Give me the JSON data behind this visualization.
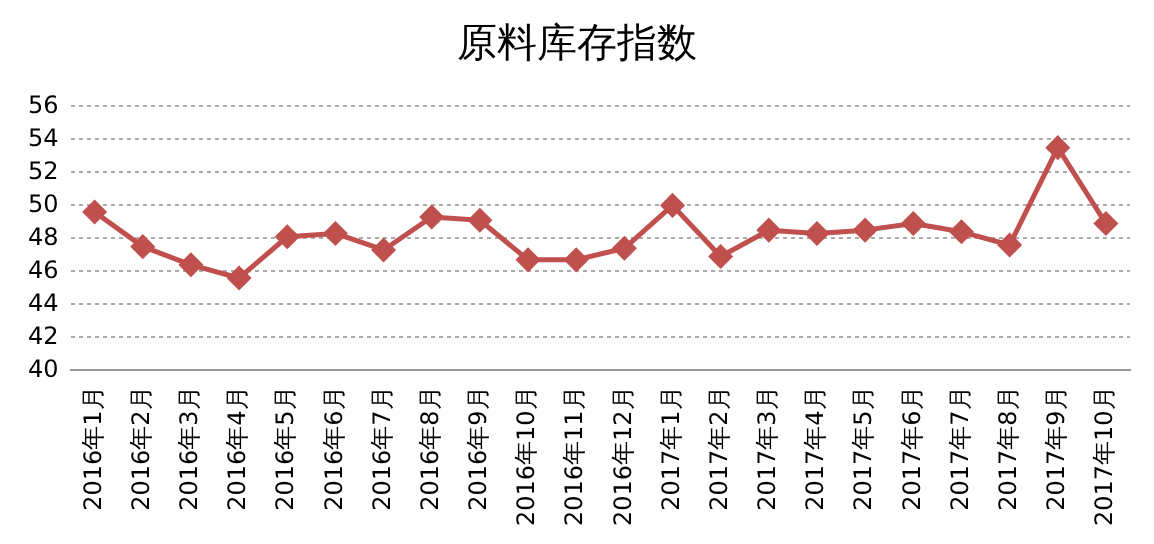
{
  "chart_data": {
    "type": "line",
    "title": "原料库存指数",
    "categories": [
      "2016年1月",
      "2016年2月",
      "2016年3月",
      "2016年4月",
      "2016年5月",
      "2016年6月",
      "2016年7月",
      "2016年8月",
      "2016年9月",
      "2016年10月",
      "2016年11月",
      "2016年12月",
      "2017年1月",
      "2017年2月",
      "2017年3月",
      "2017年4月",
      "2017年5月",
      "2017年6月",
      "2017年7月",
      "2017年8月",
      "2017年9月",
      "2017年10月"
    ],
    "series": [
      {
        "color": "#c0504d",
        "values": [
          49.6,
          47.5,
          46.4,
          45.6,
          48.1,
          48.3,
          47.3,
          49.3,
          49.1,
          46.7,
          46.7,
          47.4,
          50.0,
          46.9,
          48.5,
          48.3,
          48.5,
          48.9,
          48.4,
          47.6,
          53.5,
          48.9
        ]
      }
    ],
    "ylim": [
      40,
      56
    ],
    "yticks": [
      40,
      42,
      44,
      46,
      48,
      50,
      52,
      54,
      56
    ],
    "grid": "y",
    "legend": false,
    "marker": "diamond",
    "line_style": "solid"
  }
}
